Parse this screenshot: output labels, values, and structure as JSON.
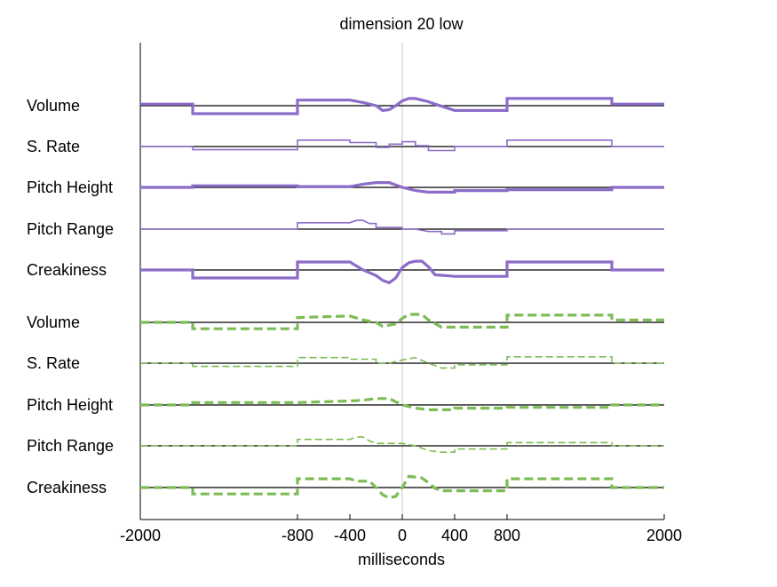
{
  "chart_data": {
    "type": "line",
    "title": "dimension 20 low",
    "xlabel": "milliseconds",
    "ylabel": "",
    "xlim": [
      -2000,
      2000
    ],
    "xticks": [
      -2000,
      -800,
      -400,
      0,
      400,
      800,
      2000
    ],
    "xtick_labels": [
      "-2000",
      "-800",
      "-400",
      "0",
      "400",
      "800",
      "2000"
    ],
    "grid": false,
    "legend": "none",
    "colors": {
      "purple": "#8c6cc8",
      "green": "#7cbc54",
      "baseline": "#000000",
      "zero_line": "#c8c8c8"
    },
    "rows": [
      {
        "label": "Volume",
        "color": "purple",
        "style": "solid",
        "weight": "thick",
        "series": [
          [
            -2000,
            0.2
          ],
          [
            -1600,
            0.2
          ],
          [
            -1600,
            -1.0
          ],
          [
            -800,
            -1.0
          ],
          [
            -800,
            0.7
          ],
          [
            -400,
            0.7
          ],
          [
            -300,
            0.4
          ],
          [
            -200,
            0.0
          ],
          [
            -150,
            -0.6
          ],
          [
            -100,
            -0.5
          ],
          [
            -50,
            0.0
          ],
          [
            0,
            0.6
          ],
          [
            50,
            0.9
          ],
          [
            100,
            0.9
          ],
          [
            150,
            0.7
          ],
          [
            200,
            0.5
          ],
          [
            250,
            0.2
          ],
          [
            400,
            -0.6
          ],
          [
            800,
            -0.6
          ],
          [
            800,
            0.9
          ],
          [
            1600,
            0.9
          ],
          [
            1600,
            0.2
          ],
          [
            2000,
            0.2
          ]
        ]
      },
      {
        "label": "S. Rate",
        "color": "purple",
        "style": "solid",
        "weight": "thin",
        "series": [
          [
            -2000,
            0.0
          ],
          [
            -1600,
            0.0
          ],
          [
            -1600,
            -0.4
          ],
          [
            -800,
            -0.4
          ],
          [
            -800,
            0.8
          ],
          [
            -400,
            0.8
          ],
          [
            -400,
            0.5
          ],
          [
            -200,
            0.5
          ],
          [
            -200,
            -0.1
          ],
          [
            -100,
            -0.1
          ],
          [
            -100,
            0.3
          ],
          [
            0,
            0.3
          ],
          [
            0,
            0.6
          ],
          [
            100,
            0.6
          ],
          [
            100,
            0.1
          ],
          [
            200,
            0.1
          ],
          [
            200,
            -0.5
          ],
          [
            400,
            -0.5
          ],
          [
            400,
            0.0
          ],
          [
            800,
            0.0
          ],
          [
            800,
            0.8
          ],
          [
            1600,
            0.8
          ],
          [
            1600,
            0.0
          ],
          [
            2000,
            0.0
          ]
        ]
      },
      {
        "label": "Pitch Height",
        "color": "purple",
        "style": "solid",
        "weight": "thick",
        "series": [
          [
            -2000,
            0.0
          ],
          [
            -1600,
            0.0
          ],
          [
            -1600,
            0.2
          ],
          [
            -800,
            0.2
          ],
          [
            -800,
            0.1
          ],
          [
            -400,
            0.1
          ],
          [
            -300,
            0.4
          ],
          [
            -200,
            0.6
          ],
          [
            -100,
            0.6
          ],
          [
            -50,
            0.3
          ],
          [
            0,
            0.0
          ],
          [
            100,
            -0.4
          ],
          [
            200,
            -0.6
          ],
          [
            400,
            -0.6
          ],
          [
            400,
            -0.4
          ],
          [
            800,
            -0.4
          ],
          [
            800,
            -0.3
          ],
          [
            1600,
            -0.3
          ],
          [
            1600,
            0.0
          ],
          [
            2000,
            0.0
          ]
        ]
      },
      {
        "label": "Pitch Range",
        "color": "purple",
        "style": "solid",
        "weight": "thin",
        "series": [
          [
            -2000,
            0.0
          ],
          [
            -800,
            0.0
          ],
          [
            -800,
            0.8
          ],
          [
            -400,
            0.8
          ],
          [
            -350,
            1.1
          ],
          [
            -300,
            1.1
          ],
          [
            -250,
            0.7
          ],
          [
            -200,
            0.7
          ],
          [
            -200,
            0.2
          ],
          [
            0,
            0.2
          ],
          [
            0,
            0.0
          ],
          [
            100,
            0.0
          ],
          [
            200,
            -0.3
          ],
          [
            300,
            -0.3
          ],
          [
            300,
            -0.6
          ],
          [
            400,
            -0.6
          ],
          [
            400,
            -0.2
          ],
          [
            800,
            -0.2
          ],
          [
            800,
            0.0
          ],
          [
            2000,
            0.0
          ]
        ]
      },
      {
        "label": "Creakiness",
        "color": "purple",
        "style": "solid",
        "weight": "thick",
        "series": [
          [
            -2000,
            0.0
          ],
          [
            -1600,
            0.0
          ],
          [
            -1600,
            -1.0
          ],
          [
            -800,
            -1.0
          ],
          [
            -800,
            1.0
          ],
          [
            -400,
            1.0
          ],
          [
            -300,
            0.0
          ],
          [
            -200,
            -0.7
          ],
          [
            -150,
            -1.3
          ],
          [
            -100,
            -1.6
          ],
          [
            -50,
            -1.0
          ],
          [
            0,
            0.3
          ],
          [
            50,
            0.9
          ],
          [
            100,
            1.1
          ],
          [
            150,
            1.1
          ],
          [
            200,
            0.4
          ],
          [
            250,
            -0.6
          ],
          [
            400,
            -0.8
          ],
          [
            800,
            -0.8
          ],
          [
            800,
            1.0
          ],
          [
            1600,
            1.0
          ],
          [
            1600,
            0.0
          ],
          [
            2000,
            0.0
          ]
        ]
      },
      {
        "label": "Volume",
        "color": "green",
        "style": "dashed",
        "weight": "thick",
        "series": [
          [
            -2000,
            0.0
          ],
          [
            -1600,
            0.0
          ],
          [
            -1600,
            -0.8
          ],
          [
            -800,
            -0.8
          ],
          [
            -800,
            0.6
          ],
          [
            -400,
            0.8
          ],
          [
            -300,
            0.3
          ],
          [
            -200,
            0.0
          ],
          [
            -150,
            -0.5
          ],
          [
            -50,
            -0.2
          ],
          [
            0,
            0.5
          ],
          [
            50,
            1.0
          ],
          [
            150,
            1.0
          ],
          [
            200,
            0.3
          ],
          [
            300,
            -0.6
          ],
          [
            400,
            -0.6
          ],
          [
            800,
            -0.6
          ],
          [
            800,
            0.9
          ],
          [
            1600,
            0.9
          ],
          [
            1600,
            0.3
          ],
          [
            2000,
            0.3
          ]
        ]
      },
      {
        "label": "S. Rate",
        "color": "green",
        "style": "dashed",
        "weight": "thin",
        "series": [
          [
            -2000,
            0.0
          ],
          [
            -1600,
            0.0
          ],
          [
            -1600,
            -0.4
          ],
          [
            -800,
            -0.4
          ],
          [
            -800,
            0.7
          ],
          [
            -400,
            0.7
          ],
          [
            -400,
            0.5
          ],
          [
            -200,
            0.5
          ],
          [
            -200,
            0.0
          ],
          [
            -100,
            0.0
          ],
          [
            0,
            0.4
          ],
          [
            100,
            0.7
          ],
          [
            200,
            0.0
          ],
          [
            300,
            -0.6
          ],
          [
            400,
            -0.6
          ],
          [
            400,
            -0.2
          ],
          [
            800,
            -0.2
          ],
          [
            800,
            0.8
          ],
          [
            1600,
            0.8
          ],
          [
            1600,
            0.0
          ],
          [
            2000,
            0.0
          ]
        ]
      },
      {
        "label": "Pitch Height",
        "color": "green",
        "style": "dashed",
        "weight": "thick",
        "series": [
          [
            -2000,
            0.0
          ],
          [
            -1600,
            0.0
          ],
          [
            -1600,
            0.3
          ],
          [
            -800,
            0.3
          ],
          [
            -400,
            0.5
          ],
          [
            -300,
            0.6
          ],
          [
            -200,
            0.8
          ],
          [
            -100,
            0.8
          ],
          [
            -50,
            0.4
          ],
          [
            0,
            0.0
          ],
          [
            100,
            -0.4
          ],
          [
            200,
            -0.6
          ],
          [
            400,
            -0.6
          ],
          [
            400,
            -0.4
          ],
          [
            800,
            -0.4
          ],
          [
            800,
            -0.3
          ],
          [
            1600,
            -0.3
          ],
          [
            1600,
            0.0
          ],
          [
            2000,
            0.0
          ]
        ]
      },
      {
        "label": "Pitch Range",
        "color": "green",
        "style": "dashed",
        "weight": "thin",
        "series": [
          [
            -2000,
            0.0
          ],
          [
            -800,
            0.0
          ],
          [
            -800,
            0.8
          ],
          [
            -400,
            0.8
          ],
          [
            -350,
            1.1
          ],
          [
            -300,
            1.1
          ],
          [
            -250,
            0.6
          ],
          [
            -200,
            0.3
          ],
          [
            0,
            0.3
          ],
          [
            100,
            0.0
          ],
          [
            200,
            -0.6
          ],
          [
            300,
            -0.8
          ],
          [
            400,
            -0.8
          ],
          [
            400,
            -0.4
          ],
          [
            800,
            -0.4
          ],
          [
            800,
            0.4
          ],
          [
            1600,
            0.4
          ],
          [
            1600,
            0.0
          ],
          [
            2000,
            0.0
          ]
        ]
      },
      {
        "label": "Creakiness",
        "color": "green",
        "style": "dashed",
        "weight": "thick",
        "series": [
          [
            -2000,
            0.0
          ],
          [
            -1600,
            0.0
          ],
          [
            -1600,
            -0.8
          ],
          [
            -800,
            -0.8
          ],
          [
            -800,
            1.1
          ],
          [
            -400,
            1.1
          ],
          [
            -350,
            0.8
          ],
          [
            -250,
            0.8
          ],
          [
            -200,
            0.0
          ],
          [
            -150,
            -0.9
          ],
          [
            -100,
            -1.3
          ],
          [
            -50,
            -1.1
          ],
          [
            0,
            0.0
          ],
          [
            50,
            1.4
          ],
          [
            150,
            1.2
          ],
          [
            200,
            0.6
          ],
          [
            250,
            -0.1
          ],
          [
            300,
            -0.4
          ],
          [
            800,
            -0.4
          ],
          [
            800,
            1.1
          ],
          [
            1600,
            1.1
          ],
          [
            1600,
            0.0
          ],
          [
            2000,
            0.0
          ]
        ]
      }
    ]
  }
}
